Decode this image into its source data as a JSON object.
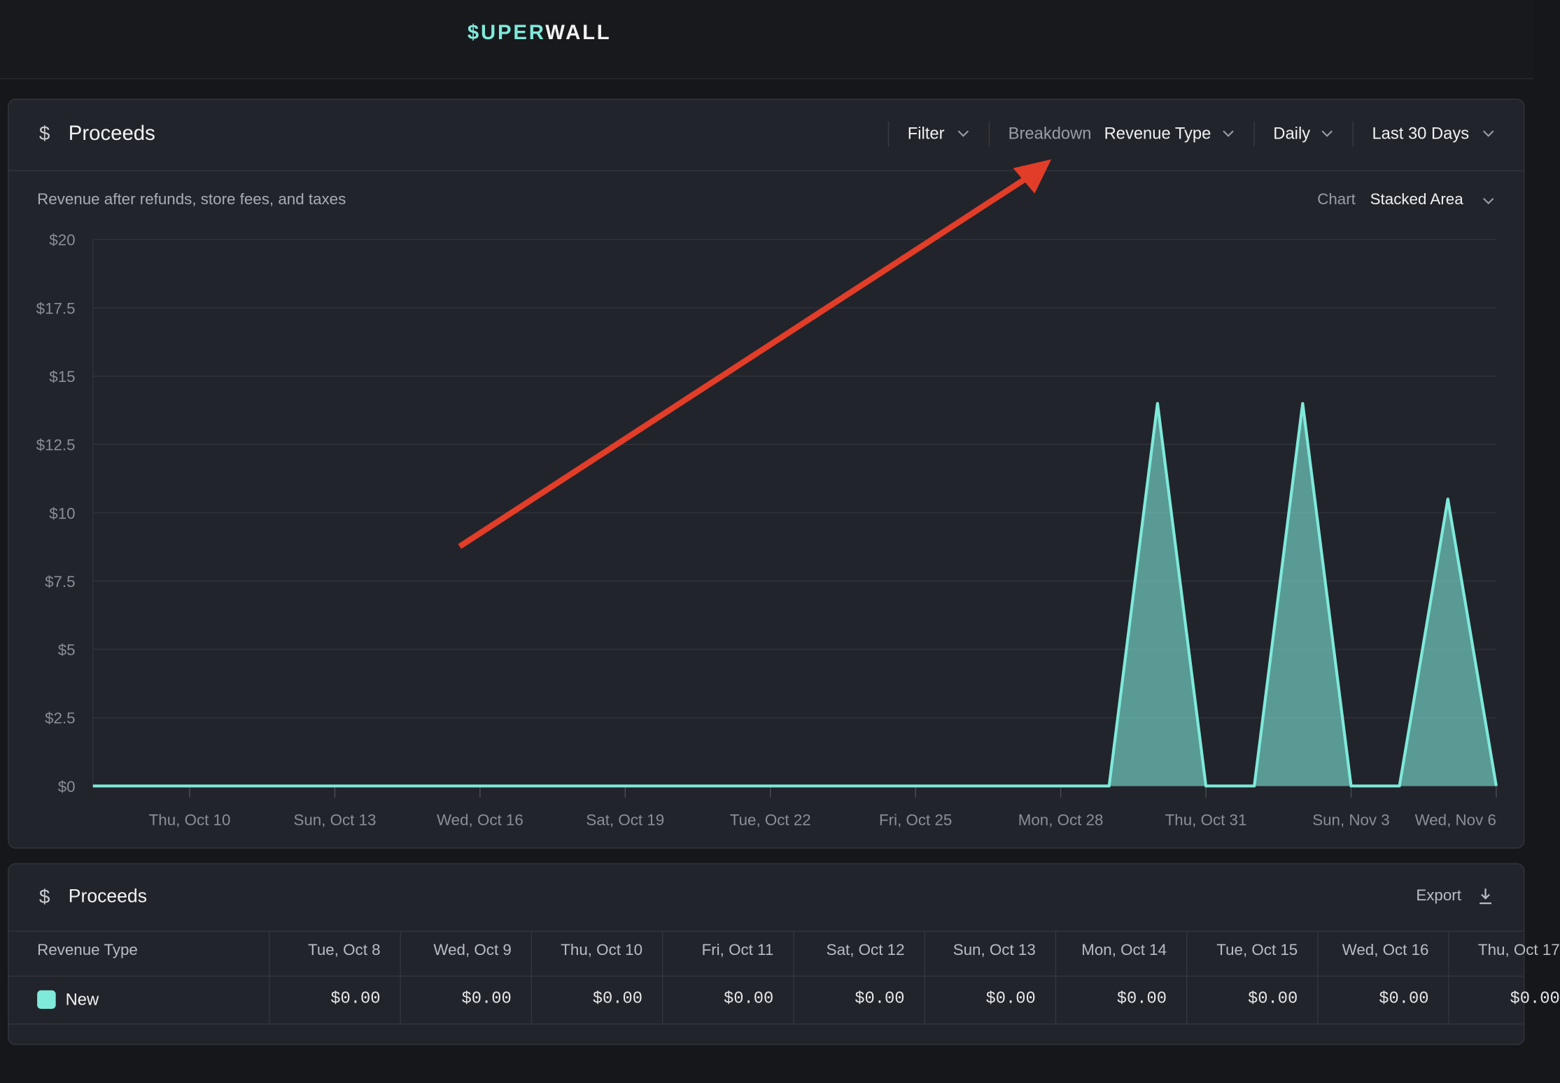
{
  "logo": {
    "accent": "$UPER",
    "rest": "WALL"
  },
  "panel": {
    "icon": "$",
    "title": "Proceeds",
    "subtitle": "Revenue after refunds, store fees, and taxes"
  },
  "controls": {
    "filter": "Filter",
    "breakdown_label": "Breakdown",
    "breakdown": "Revenue Type",
    "interval": "Daily",
    "range": "Last 30 Days",
    "chart_label": "Chart",
    "chart_type": "Stacked Area"
  },
  "chart_data": {
    "type": "area",
    "categories": [
      null,
      null,
      "Thu, Oct 10",
      null,
      null,
      "Sun, Oct 13",
      null,
      null,
      "Wed, Oct 16",
      null,
      null,
      "Sat, Oct 19",
      null,
      null,
      "Tue, Oct 22",
      null,
      null,
      "Fri, Oct 25",
      null,
      null,
      "Mon, Oct 28",
      null,
      null,
      "Thu, Oct 31",
      null,
      null,
      "Sun, Nov 3",
      null,
      null,
      "Wed, Nov 6"
    ],
    "series": [
      {
        "name": "New",
        "color": "#7fe9da",
        "values": [
          0,
          0,
          0,
          0,
          0,
          0,
          0,
          0,
          0,
          0,
          0,
          0,
          0,
          0,
          0,
          0,
          0,
          0,
          0,
          0,
          0,
          0,
          14,
          0,
          0,
          14,
          0,
          0,
          10.5,
          0
        ]
      }
    ],
    "ylim": [
      0,
      20
    ],
    "yticks": [
      {
        "value": 0,
        "label": "$0"
      },
      {
        "value": 2.5,
        "label": "$2.5"
      },
      {
        "value": 5,
        "label": "$5"
      },
      {
        "value": 7.5,
        "label": "$7.5"
      },
      {
        "value": 10,
        "label": "$10"
      },
      {
        "value": 12.5,
        "label": "$12.5"
      },
      {
        "value": 15,
        "label": "$15"
      },
      {
        "value": 17.5,
        "label": "$17.5"
      },
      {
        "value": 20,
        "label": "$20"
      }
    ],
    "grid": true
  },
  "table": {
    "icon": "$",
    "title": "Proceeds",
    "export": "Export",
    "header": "Revenue Type",
    "columns": [
      "Tue, Oct 8",
      "Wed, Oct 9",
      "Thu, Oct 10",
      "Fri, Oct 11",
      "Sat, Oct 12",
      "Sun, Oct 13",
      "Mon, Oct 14",
      "Tue, Oct 15",
      "Wed, Oct 16",
      "Thu, Oct 17"
    ],
    "rows": [
      {
        "cells": [
          "$0.00",
          "$0.00",
          "$0.00",
          "$0.00",
          "$0.00",
          "$0.00",
          "$0.00",
          "$0.00",
          "$0.00",
          "$0.00"
        ]
      }
    ]
  }
}
